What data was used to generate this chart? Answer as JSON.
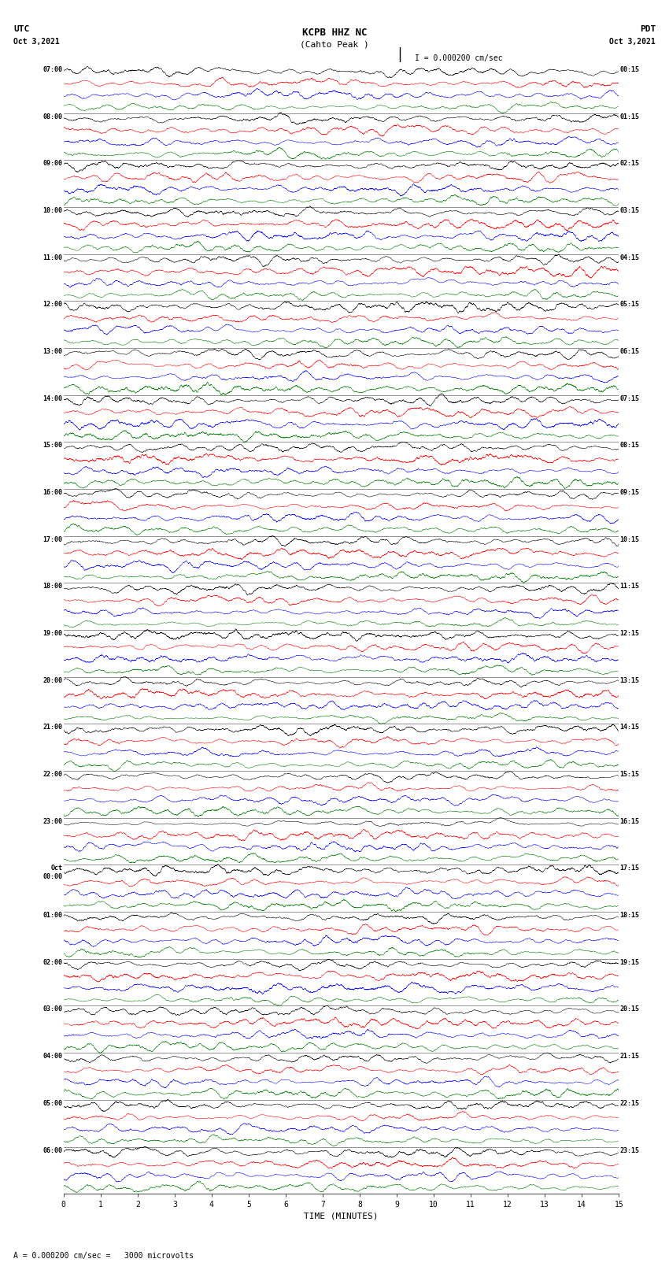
{
  "title_line1": "KCPB HHZ NC",
  "title_line2": "(Cahto Peak )",
  "title_scale": "  = 0.000200 cm/sec",
  "left_header_line1": "UTC",
  "left_header_line2": "Oct 3,2021",
  "right_header_line1": "PDT",
  "right_header_line2": "Oct 3,2021",
  "xlabel": "TIME (MINUTES)",
  "bottom_label": "= 0.000200 cm/sec =   3000 microvolts",
  "bottom_label_prefix": "A",
  "scale_bar_label": "I = 0.000200 cm/sec",
  "fig_width": 8.5,
  "fig_height": 16.13,
  "dpi": 100,
  "left_times_utc": [
    "07:00",
    "08:00",
    "09:00",
    "10:00",
    "11:00",
    "12:00",
    "13:00",
    "14:00",
    "15:00",
    "16:00",
    "17:00",
    "18:00",
    "19:00",
    "20:00",
    "21:00",
    "22:00",
    "23:00",
    "Oct\n00:00",
    "01:00",
    "02:00",
    "03:00",
    "04:00",
    "05:00",
    "06:00"
  ],
  "right_times_pdt": [
    "00:15",
    "01:15",
    "02:15",
    "03:15",
    "04:15",
    "05:15",
    "06:15",
    "07:15",
    "08:15",
    "09:15",
    "10:15",
    "11:15",
    "12:15",
    "13:15",
    "14:15",
    "15:15",
    "16:15",
    "17:15",
    "18:15",
    "19:15",
    "20:15",
    "21:15",
    "22:15",
    "23:15"
  ],
  "xticks": [
    0,
    1,
    2,
    3,
    4,
    5,
    6,
    7,
    8,
    9,
    10,
    11,
    12,
    13,
    14,
    15
  ],
  "trace_colors": [
    "black",
    "red",
    "blue",
    "green"
  ],
  "num_rows": 24,
  "traces_per_row": 4,
  "time_minutes": 15,
  "samples_per_row": 9000,
  "amplitude_scale": 0.11,
  "bg_color": "white",
  "trace_linewidth": 0.35,
  "seed": 42
}
